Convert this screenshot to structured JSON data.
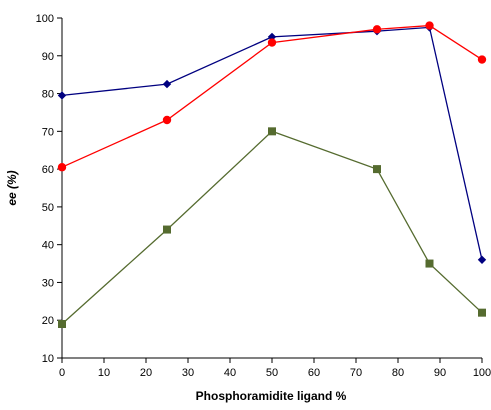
{
  "chart_data": {
    "type": "line",
    "xlabel": "Phosphoramidite ligand %",
    "ylabel": "ee (%)",
    "xlim": [
      0,
      100
    ],
    "ylim": [
      10,
      100
    ],
    "x_ticks": [
      0,
      10,
      20,
      30,
      40,
      50,
      60,
      70,
      80,
      90,
      100
    ],
    "y_ticks": [
      10,
      20,
      30,
      40,
      50,
      60,
      70,
      80,
      90,
      100
    ],
    "grid": false,
    "legend": "none",
    "series": [
      {
        "color": "#000080",
        "marker": "diamond",
        "x": [
          0,
          25,
          50,
          75,
          87.5,
          100
        ],
        "y": [
          79.5,
          82.5,
          95,
          96.5,
          97.5,
          36
        ]
      },
      {
        "color": "#ff0000",
        "marker": "circle",
        "x": [
          0,
          25,
          50,
          75,
          87.5,
          100
        ],
        "y": [
          60.5,
          73,
          93.5,
          97,
          98,
          89
        ]
      },
      {
        "color": "#556b2f",
        "marker": "square",
        "x": [
          0,
          25,
          50,
          75,
          87.5,
          100
        ],
        "y": [
          19,
          44,
          70,
          60,
          35,
          22
        ]
      }
    ]
  }
}
